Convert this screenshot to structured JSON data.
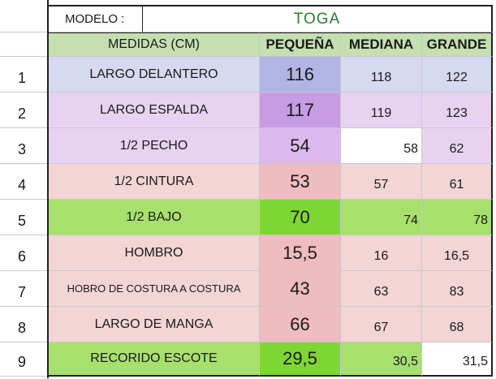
{
  "header": {
    "modelo_label": "MODELO :",
    "modelo_value": "TOGA"
  },
  "columns": {
    "medidas": "MEDIDAS (CM)",
    "pequena": "PEQUEÑA",
    "mediana": "MEDIANA",
    "grande": "GRANDE"
  },
  "rows": [
    {
      "num": "1",
      "label": "LARGO DELANTERO",
      "pequena": "116",
      "mediana": "118",
      "grande": "122"
    },
    {
      "num": "2",
      "label": "LARGO ESPALDA",
      "pequena": "117",
      "mediana": "119",
      "grande": "123"
    },
    {
      "num": "3",
      "label": "1/2 PECHO",
      "pequena": "54",
      "mediana": "58",
      "grande": "62"
    },
    {
      "num": "4",
      "label": "1/2 CINTURA",
      "pequena": "53",
      "mediana": "57",
      "grande": "61"
    },
    {
      "num": "5",
      "label": "1/2 BAJO",
      "pequena": "70",
      "mediana": "74",
      "grande": "78"
    },
    {
      "num": "6",
      "label": "HOMBRO",
      "pequena": "15,5",
      "mediana": "16",
      "grande": "16,5"
    },
    {
      "num": "7",
      "label": "HOBRO DE COSTURA A COSTURA",
      "pequena": "43",
      "mediana": "63",
      "grande": "83"
    },
    {
      "num": "8",
      "label": "LARGO DE MANGA",
      "pequena": "66",
      "mediana": "67",
      "grande": "68"
    },
    {
      "num": "9",
      "label": "RECORIDO ESCOTE",
      "pequena": "29,5",
      "mediana": "30,5",
      "grande": "31,5"
    }
  ],
  "colors": {
    "header_green": "#c4dfb0",
    "bright_green": "#7ed634",
    "light_green": "#a8e06e",
    "lavender": "#d7d9f1",
    "lilac": "#e7d3f1",
    "pink": "#f3d5d6",
    "pink_strong": "#efbcbf",
    "blue_strong": "#b2b4e4",
    "purple_strong": "#c79ce5",
    "purple_mid": "#dcb8ef"
  }
}
